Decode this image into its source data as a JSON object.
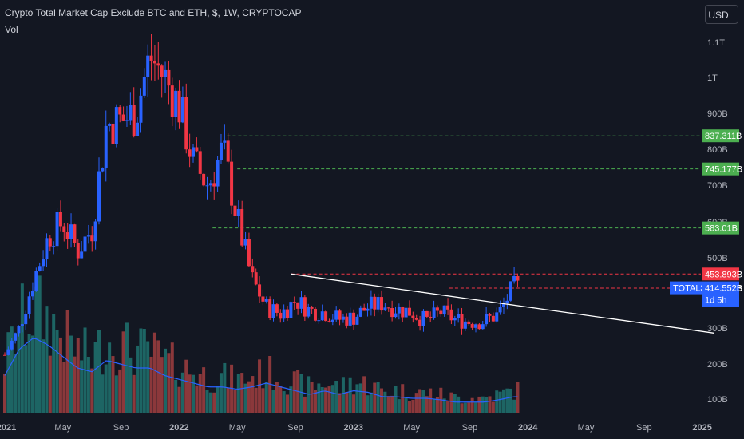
{
  "header": {
    "title": "Crypto Total Market Cap Exclude BTC and ETH, $, 1W, CRYPTOCAP",
    "volume_label": "Vol",
    "currency_button": "USD"
  },
  "colors": {
    "background": "#131722",
    "up": "#2962ff",
    "down": "#f23645",
    "vol_up": "#26a69a",
    "vol_down": "#ef5350",
    "vol_ma": "#2962ff",
    "support": "#4caf50",
    "resistance": "#f23645",
    "trendline": "#ffffff"
  },
  "chart_data": {
    "type": "candlestick",
    "symbol": "TOTAL3",
    "interval": "1W",
    "y_axis": {
      "ticks": [
        "1.1T",
        "1T",
        "900B",
        "800B",
        "700B",
        "600B",
        "500B",
        "300B",
        "200B",
        "100B"
      ],
      "tick_values": [
        1100,
        1000,
        900,
        800,
        700,
        600,
        500,
        300,
        200,
        100
      ]
    },
    "x_axis": {
      "ticks": [
        "2021",
        "May",
        "Sep",
        "2022",
        "May",
        "Sep",
        "2023",
        "May",
        "Sep",
        "2024",
        "May",
        "Sep",
        "2025"
      ],
      "tick_months": [
        0,
        4,
        8,
        12,
        16,
        20,
        24,
        28,
        32,
        36,
        40,
        44,
        48
      ]
    },
    "horizontal_levels": [
      {
        "label": "837.311B",
        "value": 837.311,
        "kind": "support",
        "start_month": 15.3
      },
      {
        "label": "745.177B",
        "value": 745.177,
        "kind": "support",
        "start_month": 16.0
      },
      {
        "label": "583.01B",
        "value": 583.01,
        "kind": "support",
        "start_month": 14.3
      },
      {
        "label": "453.893B",
        "value": 453.893,
        "kind": "resistance",
        "start_month": 19.7
      },
      {
        "label": "413.778B",
        "value": 413.778,
        "kind": "resistance",
        "start_month": 30.6
      }
    ],
    "trendline": {
      "start": [
        19.7,
        453.9
      ],
      "end": [
        48.8,
        286
      ]
    },
    "price_tag": {
      "symbol": "TOTAL3",
      "value": "414.552B",
      "countdown": "1d 5h"
    },
    "price_path": [
      [
        0,
        225
      ],
      [
        1,
        300
      ],
      [
        2,
        440
      ],
      [
        3,
        560
      ],
      [
        4,
        600
      ],
      [
        5,
        520
      ],
      [
        6,
        580
      ],
      [
        7,
        870
      ],
      [
        8,
        880
      ],
      [
        9,
        900
      ],
      [
        10,
        1060
      ],
      [
        11,
        1000
      ],
      [
        12,
        920
      ],
      [
        13,
        760
      ],
      [
        14,
        700
      ],
      [
        15,
        800
      ],
      [
        16,
        610
      ],
      [
        17,
        440
      ],
      [
        18,
        360
      ],
      [
        19,
        340
      ],
      [
        20,
        380
      ],
      [
        21,
        350
      ],
      [
        22,
        345
      ],
      [
        23,
        325
      ],
      [
        24,
        330
      ],
      [
        25,
        360
      ],
      [
        26,
        370
      ],
      [
        27,
        355
      ],
      [
        28,
        345
      ],
      [
        29,
        320
      ],
      [
        30,
        345
      ],
      [
        31,
        325
      ],
      [
        32,
        318
      ],
      [
        33,
        320
      ],
      [
        34,
        340
      ],
      [
        35,
        416
      ]
    ],
    "volume_path": [
      [
        0,
        0.5
      ],
      [
        1,
        0.85
      ],
      [
        2,
        1.0
      ],
      [
        3,
        0.9
      ],
      [
        4,
        0.75
      ],
      [
        5,
        0.6
      ],
      [
        6,
        0.55
      ],
      [
        7,
        0.7
      ],
      [
        8,
        0.65
      ],
      [
        9,
        0.6
      ],
      [
        10,
        0.6
      ],
      [
        11,
        0.5
      ],
      [
        12,
        0.45
      ],
      [
        13,
        0.4
      ],
      [
        14,
        0.35
      ],
      [
        15,
        0.35
      ],
      [
        16,
        0.32
      ],
      [
        17,
        0.35
      ],
      [
        18,
        0.4
      ],
      [
        19,
        0.35
      ],
      [
        20,
        0.3
      ],
      [
        21,
        0.25
      ],
      [
        22,
        0.3
      ],
      [
        23,
        0.25
      ],
      [
        24,
        0.3
      ],
      [
        25,
        0.28
      ],
      [
        26,
        0.22
      ],
      [
        27,
        0.22
      ],
      [
        28,
        0.2
      ],
      [
        29,
        0.2
      ],
      [
        30,
        0.18
      ],
      [
        31,
        0.15
      ],
      [
        32,
        0.15
      ],
      [
        33,
        0.15
      ],
      [
        34,
        0.18
      ],
      [
        35,
        0.22
      ]
    ]
  }
}
